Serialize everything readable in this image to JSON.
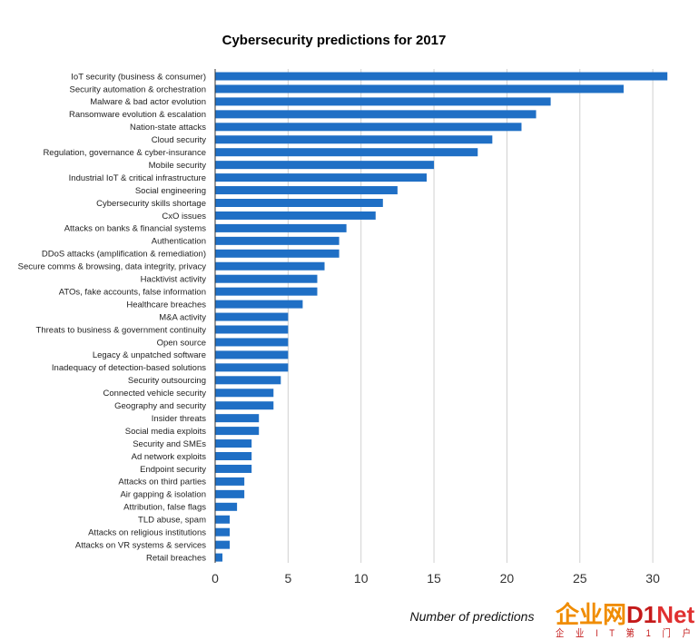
{
  "chart_data": {
    "type": "bar",
    "orientation": "horizontal",
    "title": "Cybersecurity predictions for 2017",
    "xlabel": "Number of predictions",
    "xlim": [
      0,
      32
    ],
    "xticks": [
      "0",
      "5",
      "10",
      "15",
      "20",
      "25",
      "30"
    ],
    "grid": true,
    "bar_color": "#1f6fc5",
    "categories": [
      "IoT security (business & consumer)",
      "Security automation & orchestration",
      "Malware & bad actor evolution",
      "Ransomware evolution & escalation",
      "Nation-state attacks",
      "Cloud security",
      "Regulation, governance & cyber-insurance",
      "Mobile security",
      "Industrial IoT & critical infrastructure",
      "Social engineering",
      "Cybersecurity skills shortage",
      "CxO issues",
      "Attacks on banks & financial systems",
      "Authentication",
      "DDoS attacks (amplification & remediation)",
      "Secure comms & browsing, data integrity, privacy",
      "Hacktivist activity",
      "ATOs, fake accounts, false information",
      "Healthcare breaches",
      "M&A activity",
      "Threats to business & government continuity",
      "Open source",
      "Legacy & unpatched software",
      "Inadequacy of detection-based solutions",
      "Security outsourcing",
      "Connected vehicle security",
      "Geography and security",
      "Insider threats",
      "Social media exploits",
      "Security and SMEs",
      "Ad network exploits",
      "Endpoint security",
      "Attacks on third parties",
      "Air gapping & isolation",
      "Attribution, false flags",
      "TLD abuse, spam",
      "Attacks on religious institutions",
      "Attacks on VR systems & services",
      "Retail breaches"
    ],
    "values": [
      31,
      28,
      23,
      22,
      21,
      19,
      18,
      15,
      14.5,
      12.5,
      11.5,
      11,
      9,
      8.5,
      8.5,
      7.5,
      7,
      7,
      6,
      5,
      5,
      5,
      5,
      5,
      4.5,
      4,
      4,
      3,
      3,
      2.5,
      2.5,
      2.5,
      2,
      2,
      1.5,
      1,
      1,
      1,
      0.5
    ]
  },
  "watermark": {
    "logo_text": "企业网D1Net",
    "logo_colors": {
      "chinese": "#f08c00",
      "brand": "#c41a1a",
      "net": "#e03030"
    },
    "tagline": "企 业 I T 第 1 门 户"
  }
}
